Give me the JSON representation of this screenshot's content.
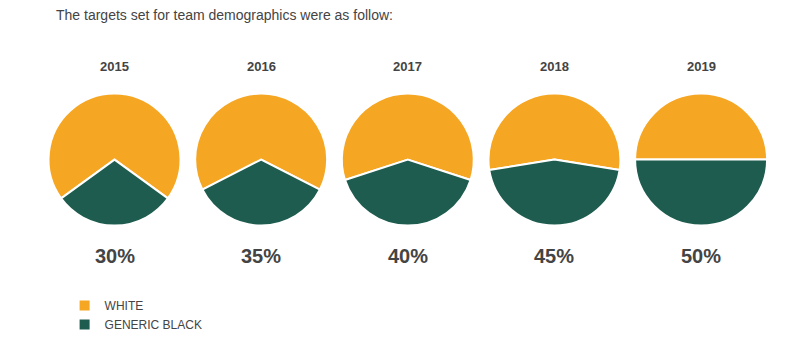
{
  "chart_data": {
    "type": "pie",
    "title": "The targets set for team demographics were as follow:",
    "categories": [
      "WHITE",
      "GENERIC BLACK"
    ],
    "colors": [
      "#F5A623",
      "#1D5C4E"
    ],
    "legend": "lower left",
    "series": [
      {
        "name": "2015",
        "values": [
          70,
          30
        ],
        "value_labels": [
          null,
          "30%"
        ]
      },
      {
        "name": "2016",
        "values": [
          65,
          35
        ],
        "value_labels": [
          null,
          "35%"
        ]
      },
      {
        "name": "2017",
        "values": [
          60,
          40
        ],
        "value_labels": [
          null,
          "40%"
        ]
      },
      {
        "name": "2018",
        "values": [
          55,
          45
        ],
        "value_labels": [
          null,
          "45%"
        ]
      },
      {
        "name": "2019",
        "values": [
          50,
          50
        ],
        "value_labels": [
          null,
          "50%"
        ]
      }
    ]
  }
}
